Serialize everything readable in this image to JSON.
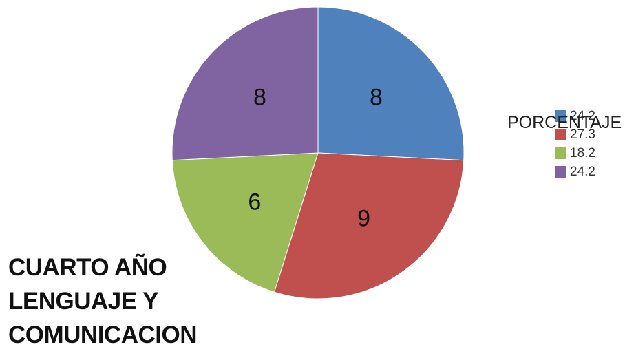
{
  "chart_data": {
    "type": "pie",
    "title": "CUARTO AÑO LENGUAJE Y COMUNICACION",
    "title_lines": [
      "CUARTO AÑO",
      "LENGUAJE Y",
      "COMUNICACION"
    ],
    "values": [
      8,
      9,
      6,
      8
    ],
    "data_labels": [
      "8",
      "9",
      "6",
      "8"
    ],
    "legend_title": "PORCENTAJE",
    "legend_entries": [
      "24.2",
      "27.3",
      "18.2",
      "24.2"
    ],
    "colors": [
      "#4F81BD",
      "#C0504D",
      "#9BBB59",
      "#8064A2"
    ],
    "start_angle_deg": 0,
    "direction": "clockwise",
    "legend_position": "right"
  }
}
